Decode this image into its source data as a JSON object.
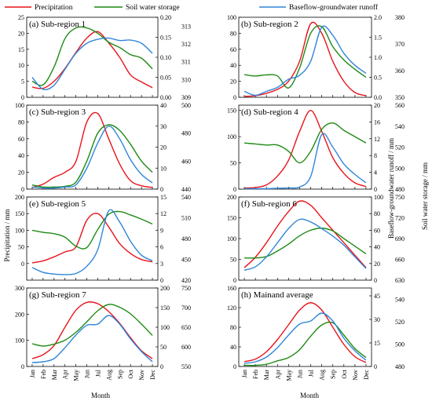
{
  "legend": [
    {
      "label": "Precipitation",
      "color": "#e8141c"
    },
    {
      "label": "Soil water storage",
      "color": "#1f8a14"
    },
    {
      "label": "Baseflow-groundwater runoff",
      "color": "#2f86d9"
    }
  ],
  "axis_labels": {
    "x": "Month",
    "y_left": "Precipitation / mm",
    "y_right_inner": "Baseflow-groundwater runoff / mm",
    "y_right_outer": "Soil water storage / mm"
  },
  "months": [
    "Jan",
    "Feb",
    "Mar",
    "Apr",
    "May",
    "Jun",
    "Jul",
    "Aug",
    "Sep",
    "Oct",
    "Nov",
    "Dec"
  ],
  "chart_data": [
    {
      "type": "line",
      "title": "(a) Sub-region 1",
      "categories": [
        "Jan",
        "Feb",
        "Mar",
        "Apr",
        "May",
        "Jun",
        "Jul",
        "Aug",
        "Sep",
        "Oct",
        "Nov",
        "Dec"
      ],
      "ylim_left": [
        0,
        25
      ],
      "ticks_left": [
        0,
        5,
        10,
        15,
        20,
        25
      ],
      "ylim_right1": [
        0,
        0.2
      ],
      "ticks_right1": [
        "0.00",
        "0.05",
        "0.10",
        "0.15",
        "0.20"
      ],
      "ylim_right2": [
        309,
        313.5
      ],
      "ticks_right2": [
        309,
        310,
        311,
        312,
        313
      ],
      "series": [
        {
          "name": "Precipitation",
          "axis": "left",
          "values": [
            3.2,
            2.8,
            5,
            9,
            14,
            18.5,
            20.5,
            17,
            12.5,
            7,
            4.8,
            3
          ]
        },
        {
          "name": "Soil water storage",
          "axis": "right2",
          "values": [
            309.9,
            309.7,
            310.7,
            312.3,
            312.9,
            312.9,
            312.6,
            312.1,
            311.8,
            311.4,
            311.2,
            310.6
          ]
        },
        {
          "name": "Baseflow-groundwater runoff",
          "axis": "right1",
          "values": [
            0.05,
            0.02,
            0.03,
            0.07,
            0.11,
            0.135,
            0.145,
            0.148,
            0.142,
            0.143,
            0.135,
            0.11
          ]
        }
      ]
    },
    {
      "type": "line",
      "title": "(b) Sub-region 2",
      "categories": [
        "Jan",
        "Feb",
        "Mar",
        "Apr",
        "May",
        "Jun",
        "Jul",
        "Aug",
        "Sep",
        "Oct",
        "Nov",
        "Dec"
      ],
      "ylim_left": [
        0,
        100
      ],
      "ticks_left": [
        0,
        20,
        40,
        60,
        80,
        100
      ],
      "ylim_right1": [
        0,
        2
      ],
      "ticks_right1": [
        "0.0",
        "0.5",
        "1.0",
        "1.5",
        "2.0"
      ],
      "ylim_right2": [
        350,
        380
      ],
      "ticks_right2": [
        350,
        360,
        370,
        380
      ],
      "series": [
        {
          "name": "Precipitation",
          "axis": "left",
          "values": [
            1,
            2,
            5,
            10,
            20,
            45,
            92,
            80,
            45,
            20,
            6,
            2
          ]
        },
        {
          "name": "Soil water storage",
          "axis": "right2",
          "values": [
            358.5,
            358,
            358.4,
            358,
            353.5,
            361,
            374,
            376.5,
            369,
            364,
            360.5,
            357.5
          ]
        },
        {
          "name": "Baseflow-groundwater runoff",
          "axis": "right1",
          "values": [
            0.15,
            0.05,
            0.15,
            0.25,
            0.45,
            0.55,
            0.9,
            1.75,
            1.55,
            1.1,
            0.8,
            0.6
          ]
        }
      ]
    },
    {
      "type": "line",
      "title": "(c) Sub-region 3",
      "categories": [
        "Jan",
        "Feb",
        "Mar",
        "Apr",
        "May",
        "Jun",
        "Jul",
        "Aug",
        "Sep",
        "Oct",
        "Nov",
        "Dec"
      ],
      "ylim_left": [
        0,
        100
      ],
      "ticks_left": [
        0,
        20,
        40,
        60,
        80,
        100
      ],
      "ylim_right1": [
        0,
        40
      ],
      "ticks_right1": [
        0,
        10,
        20,
        30,
        40
      ],
      "ylim_right2": [
        440,
        500
      ],
      "ticks_right2": [
        440,
        460,
        480,
        500
      ],
      "series": [
        {
          "name": "Precipitation",
          "axis": "left",
          "values": [
            2,
            6,
            14,
            20,
            33,
            80,
            90,
            60,
            30,
            10,
            4,
            2
          ]
        },
        {
          "name": "Soil water storage",
          "axis": "right2",
          "values": [
            443,
            441.5,
            441.5,
            442,
            445,
            460,
            480,
            486,
            482,
            472,
            460,
            452
          ]
        },
        {
          "name": "Baseflow-groundwater runoff",
          "axis": "right1",
          "values": [
            1,
            0.5,
            0.5,
            1,
            2,
            10,
            22,
            30,
            24,
            14,
            7,
            3
          ]
        }
      ]
    },
    {
      "type": "line",
      "title": "(d) Sub-region 4",
      "categories": [
        "Jan",
        "Feb",
        "Mar",
        "Apr",
        "May",
        "Jun",
        "Jul",
        "Aug",
        "Sep",
        "Oct",
        "Nov",
        "Dec"
      ],
      "ylim_left": [
        0,
        160
      ],
      "ticks_left": [
        0,
        50,
        100,
        150
      ],
      "ylim_right1": [
        0,
        20
      ],
      "ticks_right1": [
        0,
        4,
        8,
        12,
        16,
        20
      ],
      "ylim_right2": [
        480,
        560
      ],
      "ticks_right2": [
        480,
        500,
        520,
        540,
        560
      ],
      "series": [
        {
          "name": "Precipitation",
          "axis": "left",
          "values": [
            2,
            3,
            8,
            25,
            55,
            110,
            150,
            110,
            60,
            30,
            12,
            5
          ]
        },
        {
          "name": "Soil water storage",
          "axis": "right2",
          "values": [
            524,
            523,
            522,
            522,
            516,
            505,
            516,
            537,
            543,
            536,
            530,
            524
          ]
        },
        {
          "name": "Baseflow-groundwater runoff",
          "axis": "right1",
          "values": [
            0.1,
            0.1,
            0.1,
            0.2,
            0.3,
            0.5,
            3,
            13,
            10,
            6,
            3.5,
            1.5
          ]
        }
      ]
    },
    {
      "type": "line",
      "title": "(e) Sub-region 5",
      "categories": [
        "Jan",
        "Feb",
        "Mar",
        "Apr",
        "May",
        "Jun",
        "Jul",
        "Aug",
        "Sep",
        "Oct",
        "Nov",
        "Dec"
      ],
      "ylim_left": [
        -50,
        200
      ],
      "ticks_left": [
        0,
        50,
        100,
        150,
        200
      ],
      "ylim_right1": [
        0,
        15
      ],
      "ticks_right1": [
        0,
        3,
        6,
        9,
        12,
        15
      ],
      "ylim_right2": [
        420,
        540
      ],
      "ticks_right2": [
        420,
        450,
        480,
        510,
        540
      ],
      "series": [
        {
          "name": "Precipitation",
          "axis": "left",
          "values": [
            2,
            8,
            20,
            35,
            50,
            130,
            150,
            110,
            60,
            30,
            12,
            5
          ]
        },
        {
          "name": "Soil water storage",
          "axis": "right2",
          "values": [
            492,
            489,
            487,
            482,
            469,
            467,
            493,
            515,
            519,
            514,
            508,
            501
          ]
        },
        {
          "name": "Baseflow-groundwater runoff",
          "axis": "right1",
          "values": [
            2.3,
            1.4,
            1.1,
            1,
            1.2,
            2.5,
            5.5,
            12.5,
            10.5,
            7,
            4.5,
            3.5
          ]
        }
      ]
    },
    {
      "type": "line",
      "title": "(f) Sub-region 6",
      "categories": [
        "Jan",
        "Feb",
        "Mar",
        "Apr",
        "May",
        "Jun",
        "Jul",
        "Aug",
        "Sep",
        "Oct",
        "Nov",
        "Dec"
      ],
      "ylim_left": [
        0,
        200
      ],
      "ticks_left": [
        0,
        50,
        100,
        150,
        200
      ],
      "ylim_right1": [
        0,
        100
      ],
      "ticks_right1": [
        0,
        20,
        40,
        60,
        80,
        100
      ],
      "ylim_right2": [
        630,
        750
      ],
      "ticks_right2": [
        630,
        660,
        690,
        720,
        750
      ],
      "series": [
        {
          "name": "Precipitation",
          "axis": "left",
          "values": [
            30,
            55,
            90,
            130,
            165,
            190,
            180,
            150,
            120,
            90,
            60,
            30
          ]
        },
        {
          "name": "Soil water storage",
          "axis": "right2",
          "values": [
            662,
            662,
            664,
            672,
            682,
            694,
            702,
            705,
            701,
            690,
            679,
            668
          ]
        },
        {
          "name": "Baseflow-groundwater runoff",
          "axis": "right1",
          "values": [
            12,
            16,
            28,
            45,
            62,
            73,
            70,
            62,
            53,
            42,
            28,
            14
          ]
        }
      ]
    },
    {
      "type": "line",
      "title": "(g) Sub-region 7",
      "categories": [
        "Jan",
        "Feb",
        "Mar",
        "Apr",
        "May",
        "Jun",
        "Jul",
        "Aug",
        "Sep",
        "Oct",
        "Nov",
        "Dec"
      ],
      "ylim_left": [
        0,
        300
      ],
      "ticks_left": [
        0,
        100,
        200,
        300
      ],
      "ylim_right1": [
        0,
        200
      ],
      "ticks_right1": [
        0,
        50,
        100,
        150,
        200
      ],
      "ylim_right2": [
        550,
        750
      ],
      "ticks_right2": [
        550,
        600,
        650,
        700,
        750
      ],
      "series": [
        {
          "name": "Precipitation",
          "axis": "left",
          "values": [
            30,
            45,
            80,
            150,
            215,
            245,
            240,
            210,
            165,
            110,
            60,
            30
          ]
        },
        {
          "name": "Soil water storage",
          "axis": "right2",
          "values": [
            608,
            602,
            607,
            617,
            637,
            664,
            692,
            708,
            701,
            684,
            658,
            629
          ]
        },
        {
          "name": "Baseflow-groundwater runoff",
          "axis": "right1",
          "values": [
            10,
            12,
            20,
            48,
            80,
            105,
            108,
            130,
            108,
            70,
            38,
            12
          ]
        }
      ]
    },
    {
      "type": "line",
      "title": "(h) Mainand average",
      "categories": [
        "Jan",
        "Feb",
        "Mar",
        "Apr",
        "May",
        "Jun",
        "Jul",
        "Aug",
        "Sep",
        "Oct",
        "Nov",
        "Dec"
      ],
      "ylim_left": [
        0,
        160
      ],
      "ticks_left": [
        0,
        40,
        80,
        120,
        160
      ],
      "ylim_right1": [
        0,
        50
      ],
      "ticks_right1": [
        0,
        15,
        30,
        45
      ],
      "ylim_right2": [
        480,
        550
      ],
      "ticks_right2": [
        480,
        500,
        520,
        540
      ],
      "series": [
        {
          "name": "Precipitation",
          "axis": "left",
          "values": [
            10,
            15,
            30,
            55,
            85,
            115,
            130,
            115,
            80,
            45,
            20,
            8
          ]
        },
        {
          "name": "Soil water storage",
          "axis": "right2",
          "values": [
            481,
            481,
            482,
            485,
            488,
            495,
            507,
            517,
            519,
            508,
            496,
            488
          ]
        },
        {
          "name": "Baseflow-groundwater runoff",
          "axis": "right1",
          "values": [
            2,
            3,
            6,
            12,
            20,
            27,
            29,
            34,
            29,
            18,
            10,
            4
          ]
        }
      ]
    }
  ]
}
